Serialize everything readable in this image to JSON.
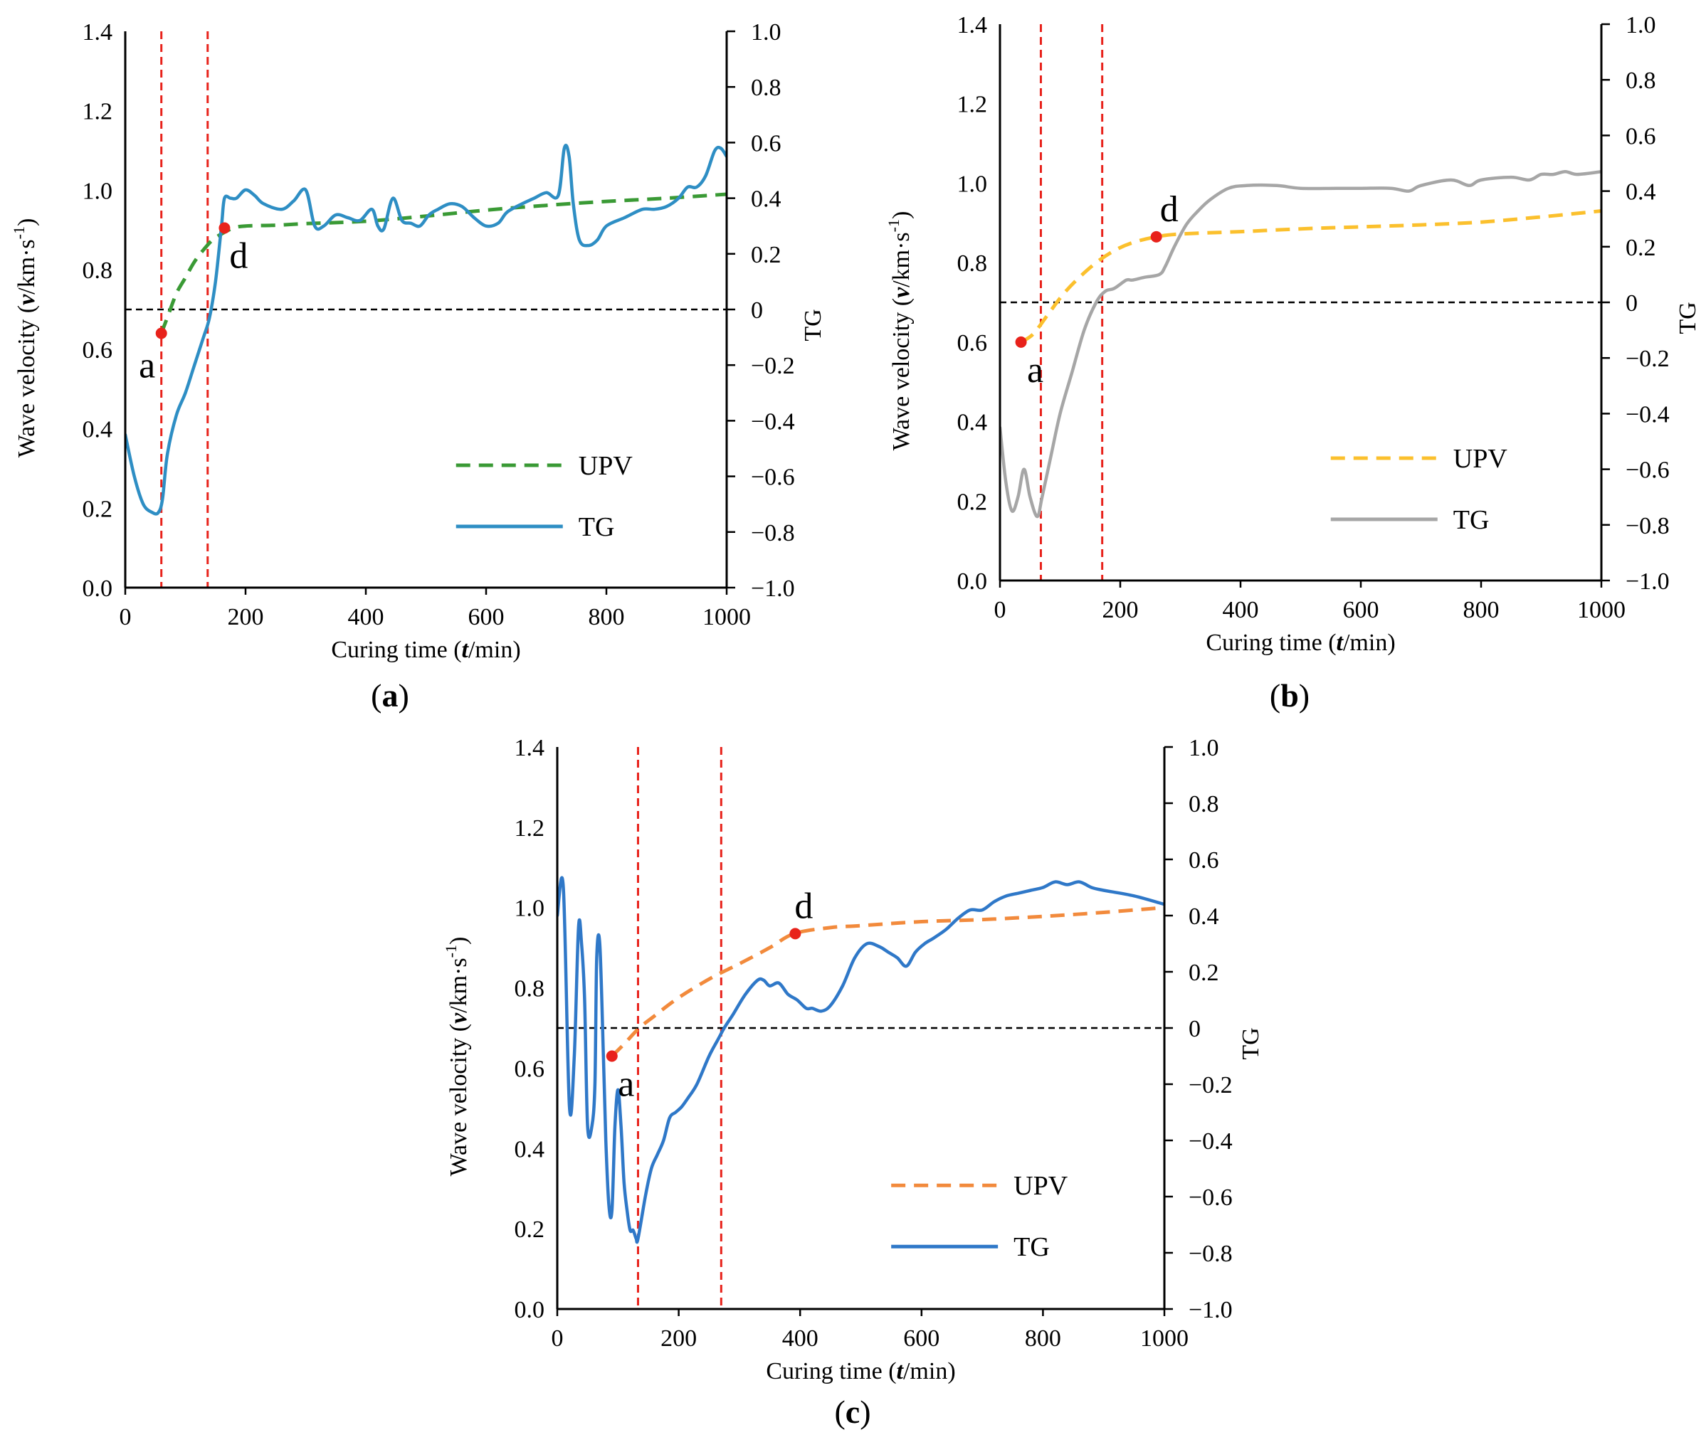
{
  "figure": {
    "colors": {
      "marker": "#e8221b",
      "guide_vertical": "#e8221b",
      "guide_zero": "#000000"
    }
  },
  "chart_data": [
    {
      "panel": "a",
      "panel_label": "a",
      "type": "line",
      "xlabel": {
        "prefix": "Curing time (",
        "var": "t",
        "suffix": "/min)"
      },
      "ylabel": {
        "prefix": "Wave velocity  (",
        "var": "v",
        "unit": "/km·s",
        "exp": "-1",
        "close": ")"
      },
      "y2label": "TG",
      "xlim": [
        0,
        1000
      ],
      "ylim": [
        0,
        1.4
      ],
      "y2lim": [
        -1,
        1
      ],
      "xticks": [
        "0",
        "200",
        "400",
        "600",
        "800",
        "1000"
      ],
      "yticks": [
        "0.0",
        "0.2",
        "0.4",
        "0.6",
        "0.8",
        "1.0",
        "1.2",
        "1.4"
      ],
      "y2ticks": [
        "−1.0",
        "−0.8",
        "−0.6",
        "−0.4",
        "−0.2",
        "0",
        "0.2",
        "0.4",
        "0.6",
        "0.8",
        "1.0"
      ],
      "vlines": [
        60,
        137
      ],
      "zero_line_y2": 0,
      "series": [
        {
          "name": "UPV",
          "axis": "y",
          "style": "dashed",
          "color": "#3a9a35",
          "x": [
            60,
            70,
            85,
            100,
            115,
            130,
            145,
            160,
            180,
            200,
            250,
            300,
            400,
            500,
            600,
            700,
            800,
            900,
            1000
          ],
          "y": [
            0.64,
            0.68,
            0.74,
            0.78,
            0.82,
            0.85,
            0.875,
            0.89,
            0.905,
            0.91,
            0.912,
            0.916,
            0.922,
            0.935,
            0.95,
            0.962,
            0.972,
            0.98,
            0.99
          ]
        },
        {
          "name": "TG",
          "axis": "y2",
          "style": "solid",
          "color": "#2e8ec4",
          "x": [
            0,
            15,
            30,
            45,
            55,
            62,
            70,
            85,
            100,
            115,
            130,
            140,
            150,
            160,
            165,
            175,
            185,
            200,
            215,
            230,
            260,
            280,
            300,
            315,
            330,
            350,
            370,
            390,
            410,
            420,
            430,
            445,
            460,
            475,
            490,
            505,
            520,
            540,
            560,
            580,
            600,
            620,
            635,
            660,
            680,
            700,
            720,
            730,
            738,
            745,
            755,
            770,
            785,
            800,
            830,
            860,
            880,
            900,
            920,
            935,
            950,
            965,
            980,
            990,
            1000
          ],
          "y": [
            -0.45,
            -0.6,
            -0.7,
            -0.73,
            -0.73,
            -0.68,
            -0.52,
            -0.38,
            -0.3,
            -0.2,
            -0.1,
            -0.03,
            0.1,
            0.3,
            0.4,
            0.4,
            0.4,
            0.43,
            0.41,
            0.38,
            0.36,
            0.39,
            0.43,
            0.3,
            0.3,
            0.34,
            0.33,
            0.32,
            0.36,
            0.3,
            0.29,
            0.4,
            0.32,
            0.31,
            0.3,
            0.34,
            0.36,
            0.38,
            0.37,
            0.33,
            0.3,
            0.31,
            0.35,
            0.38,
            0.4,
            0.42,
            0.41,
            0.58,
            0.55,
            0.38,
            0.25,
            0.23,
            0.25,
            0.3,
            0.33,
            0.36,
            0.36,
            0.37,
            0.4,
            0.44,
            0.44,
            0.48,
            0.57,
            0.58,
            0.55
          ]
        }
      ],
      "markers": [
        {
          "label": "a",
          "x": 60,
          "y": 0.64,
          "label_side": "below-left"
        },
        {
          "label": "d",
          "x": 165,
          "y": 0.905,
          "label_side": "below-right"
        }
      ],
      "legend": {
        "position": "bottom-right",
        "entries": [
          "UPV",
          "TG"
        ]
      }
    },
    {
      "panel": "b",
      "panel_label": "b",
      "type": "line",
      "xlabel": {
        "prefix": "Curing time (",
        "var": "t",
        "suffix": "/min)"
      },
      "ylabel": {
        "prefix": "Wave velocity  (",
        "var": "v",
        "unit": "/km·s",
        "exp": "-1",
        "close": ")"
      },
      "y2label": "TG",
      "xlim": [
        0,
        1000
      ],
      "ylim": [
        0,
        1.4
      ],
      "y2lim": [
        -1,
        1
      ],
      "xticks": [
        "0",
        "200",
        "400",
        "600",
        "800",
        "1000"
      ],
      "yticks": [
        "0.0",
        "0.2",
        "0.4",
        "0.6",
        "0.8",
        "1.0",
        "1.2",
        "1.4"
      ],
      "y2ticks": [
        "−1.0",
        "−0.8",
        "−0.6",
        "−0.4",
        "−0.2",
        "0",
        "0.2",
        "0.4",
        "0.6",
        "0.8",
        "1.0"
      ],
      "vlines": [
        68,
        170
      ],
      "zero_line_y2": 0,
      "series": [
        {
          "name": "UPV",
          "axis": "y",
          "style": "dashed",
          "color": "#fbc02d",
          "x": [
            35,
            55,
            80,
            105,
            130,
            160,
            190,
            220,
            260,
            300,
            400,
            500,
            600,
            700,
            800,
            900,
            1000
          ],
          "y": [
            0.6,
            0.62,
            0.67,
            0.72,
            0.76,
            0.8,
            0.83,
            0.85,
            0.865,
            0.872,
            0.878,
            0.885,
            0.89,
            0.895,
            0.902,
            0.915,
            0.93
          ]
        },
        {
          "name": "TG",
          "axis": "y2",
          "style": "solid",
          "color": "#a6a6a6",
          "x": [
            0,
            10,
            20,
            30,
            40,
            50,
            62,
            70,
            85,
            100,
            120,
            140,
            160,
            175,
            190,
            210,
            220,
            240,
            265,
            275,
            290,
            310,
            330,
            350,
            380,
            410,
            460,
            500,
            560,
            600,
            650,
            680,
            700,
            750,
            780,
            800,
            850,
            880,
            900,
            920,
            940,
            960,
            1000
          ],
          "y": [
            -0.45,
            -0.65,
            -0.75,
            -0.7,
            -0.6,
            -0.7,
            -0.77,
            -0.7,
            -0.55,
            -0.4,
            -0.25,
            -0.1,
            0.0,
            0.04,
            0.05,
            0.08,
            0.08,
            0.09,
            0.1,
            0.13,
            0.2,
            0.28,
            0.33,
            0.37,
            0.41,
            0.42,
            0.42,
            0.41,
            0.41,
            0.41,
            0.41,
            0.4,
            0.42,
            0.44,
            0.42,
            0.44,
            0.45,
            0.44,
            0.46,
            0.46,
            0.47,
            0.46,
            0.47
          ]
        }
      ],
      "markers": [
        {
          "label": "a",
          "x": 35,
          "y": 0.6,
          "label_side": "below-right"
        },
        {
          "label": "d",
          "x": 260,
          "y": 0.865,
          "label_side": "above-right"
        }
      ],
      "legend": {
        "position": "bottom-right",
        "entries": [
          "UPV",
          "TG"
        ]
      }
    },
    {
      "panel": "c",
      "panel_label": "c",
      "type": "line",
      "xlabel": {
        "prefix": "Curing time (",
        "var": "t",
        "suffix": "/min)"
      },
      "ylabel": {
        "prefix": "Wave velocity  (",
        "var": "v",
        "unit": "/km·s",
        "exp": "-1",
        "close": ")"
      },
      "y2label": "TG",
      "xlim": [
        0,
        1000
      ],
      "ylim": [
        0,
        1.4
      ],
      "y2lim": [
        -1,
        1
      ],
      "xticks": [
        "0",
        "200",
        "400",
        "600",
        "800",
        "1000"
      ],
      "yticks": [
        "0.0",
        "0.2",
        "0.4",
        "0.6",
        "0.8",
        "1.0",
        "1.2",
        "1.4"
      ],
      "y2ticks": [
        "−1.0",
        "−0.8",
        "−0.6",
        "−0.4",
        "−0.2",
        "0",
        "0.2",
        "0.4",
        "0.6",
        "0.8",
        "1.0"
      ],
      "vlines": [
        133,
        270
      ],
      "zero_line_y2": 0,
      "series": [
        {
          "name": "UPV",
          "axis": "y",
          "style": "dashed",
          "color": "#f28a3c",
          "x": [
            90,
            110,
            135,
            160,
            190,
            220,
            260,
            300,
            350,
            390,
            450,
            500,
            600,
            700,
            800,
            900,
            1000
          ],
          "y": [
            0.63,
            0.66,
            0.7,
            0.73,
            0.765,
            0.795,
            0.83,
            0.86,
            0.9,
            0.935,
            0.95,
            0.955,
            0.965,
            0.97,
            0.978,
            0.988,
            1.0
          ]
        },
        {
          "name": "TG",
          "axis": "y2",
          "style": "solid",
          "color": "#2f78c8",
          "x": [
            0,
            10,
            20,
            28,
            35,
            40,
            45,
            50,
            57,
            62,
            65,
            70,
            76,
            80,
            85,
            90,
            95,
            100,
            105,
            110,
            115,
            120,
            125,
            130,
            133,
            145,
            155,
            165,
            175,
            185,
            195,
            205,
            215,
            230,
            250,
            265,
            275,
            290,
            310,
            330,
            340,
            350,
            365,
            380,
            395,
            410,
            420,
            435,
            450,
            470,
            490,
            510,
            530,
            545,
            560,
            575,
            590,
            605,
            620,
            640,
            660,
            680,
            700,
            720,
            740,
            760,
            780,
            800,
            820,
            840,
            860,
            880,
            900,
            950,
            1000
          ],
          "y": [
            0.4,
            0.5,
            -0.28,
            -0.1,
            0.36,
            0.3,
            0.1,
            -0.35,
            -0.35,
            -0.2,
            0.25,
            0.3,
            -0.1,
            -0.4,
            -0.63,
            -0.65,
            -0.35,
            -0.22,
            -0.35,
            -0.55,
            -0.65,
            -0.72,
            -0.72,
            -0.75,
            -0.75,
            -0.6,
            -0.5,
            -0.45,
            -0.4,
            -0.32,
            -0.3,
            -0.28,
            -0.25,
            -0.2,
            -0.1,
            -0.04,
            0.0,
            0.05,
            0.12,
            0.17,
            0.17,
            0.15,
            0.16,
            0.12,
            0.1,
            0.07,
            0.07,
            0.06,
            0.08,
            0.15,
            0.25,
            0.3,
            0.29,
            0.27,
            0.25,
            0.22,
            0.27,
            0.3,
            0.32,
            0.35,
            0.39,
            0.42,
            0.42,
            0.45,
            0.47,
            0.48,
            0.49,
            0.5,
            0.52,
            0.51,
            0.52,
            0.5,
            0.49,
            0.47,
            0.44
          ]
        }
      ],
      "markers": [
        {
          "label": "a",
          "x": 90,
          "y": 0.63,
          "label_side": "below-right"
        },
        {
          "label": "d",
          "x": 392,
          "y": 0.935,
          "label_side": "above"
        }
      ],
      "legend": {
        "position": "bottom-right",
        "entries": [
          "UPV",
          "TG"
        ]
      }
    }
  ]
}
